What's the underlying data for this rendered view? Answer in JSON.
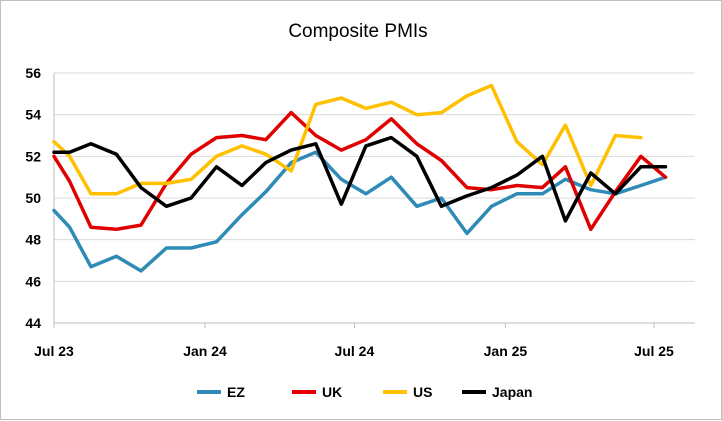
{
  "chart_data": {
    "type": "line",
    "title": "Composite PMIs",
    "xlabel": "",
    "ylabel": "",
    "ylim": [
      44,
      56
    ],
    "yticks": [
      "44",
      "46",
      "48",
      "50",
      "52",
      "54",
      "56"
    ],
    "x_range": [
      "2023-07",
      "2025-07"
    ],
    "xticks": [
      {
        "label": "Jul 23",
        "date": "2023-07"
      },
      {
        "label": "Jan 24",
        "date": "2024-01"
      },
      {
        "label": "Jul 24",
        "date": "2024-07"
      },
      {
        "label": "Jan 25",
        "date": "2025-01"
      },
      {
        "label": "Jul 25",
        "date": "2025-07"
      }
    ],
    "grid": true,
    "legend_position": "bottom",
    "series": [
      {
        "name": "EZ",
        "color": "#2e8bb5",
        "points": [
          [
            "2023-07-01",
            49.4
          ],
          [
            "2023-07-20",
            48.6
          ],
          [
            "2023-08-15",
            46.7
          ],
          [
            "2023-09-15",
            47.2
          ],
          [
            "2023-10-15",
            46.5
          ],
          [
            "2023-11-15",
            47.6
          ],
          [
            "2023-12-15",
            47.6
          ],
          [
            "2024-01-15",
            47.9
          ],
          [
            "2024-02-15",
            49.2
          ],
          [
            "2024-03-15",
            50.3
          ],
          [
            "2024-04-15",
            51.7
          ],
          [
            "2024-05-15",
            52.2
          ],
          [
            "2024-06-15",
            50.9
          ],
          [
            "2024-07-15",
            50.2
          ],
          [
            "2024-08-15",
            51.0
          ],
          [
            "2024-09-15",
            49.6
          ],
          [
            "2024-10-15",
            50.0
          ],
          [
            "2024-11-15",
            48.3
          ],
          [
            "2024-12-15",
            49.6
          ],
          [
            "2025-01-15",
            50.2
          ],
          [
            "2025-02-15",
            50.2
          ],
          [
            "2025-03-15",
            50.9
          ],
          [
            "2025-04-15",
            50.4
          ],
          [
            "2025-05-15",
            50.2
          ],
          [
            "2025-06-15",
            50.6
          ],
          [
            "2025-07-15",
            51.0
          ]
        ]
      },
      {
        "name": "UK",
        "color": "#e00000",
        "points": [
          [
            "2023-07-01",
            52.0
          ],
          [
            "2023-07-20",
            50.8
          ],
          [
            "2023-08-15",
            48.6
          ],
          [
            "2023-09-15",
            48.5
          ],
          [
            "2023-10-15",
            48.7
          ],
          [
            "2023-11-15",
            50.7
          ],
          [
            "2023-12-15",
            52.1
          ],
          [
            "2024-01-15",
            52.9
          ],
          [
            "2024-02-15",
            53.0
          ],
          [
            "2024-03-15",
            52.8
          ],
          [
            "2024-04-15",
            54.1
          ],
          [
            "2024-05-15",
            53.0
          ],
          [
            "2024-06-15",
            52.3
          ],
          [
            "2024-07-15",
            52.8
          ],
          [
            "2024-08-15",
            53.8
          ],
          [
            "2024-09-15",
            52.6
          ],
          [
            "2024-10-15",
            51.8
          ],
          [
            "2024-11-15",
            50.5
          ],
          [
            "2024-12-15",
            50.4
          ],
          [
            "2025-01-15",
            50.6
          ],
          [
            "2025-02-15",
            50.5
          ],
          [
            "2025-03-15",
            51.5
          ],
          [
            "2025-04-15",
            48.5
          ],
          [
            "2025-05-15",
            50.3
          ],
          [
            "2025-06-15",
            52.0
          ],
          [
            "2025-07-15",
            51.0
          ]
        ]
      },
      {
        "name": "US",
        "color": "#ffc000",
        "points": [
          [
            "2023-07-01",
            52.7
          ],
          [
            "2023-07-20",
            52.0
          ],
          [
            "2023-08-15",
            50.2
          ],
          [
            "2023-09-15",
            50.2
          ],
          [
            "2023-10-15",
            50.7
          ],
          [
            "2023-11-15",
            50.7
          ],
          [
            "2023-12-15",
            50.9
          ],
          [
            "2024-01-15",
            52.0
          ],
          [
            "2024-02-15",
            52.5
          ],
          [
            "2024-03-15",
            52.1
          ],
          [
            "2024-04-15",
            51.3
          ],
          [
            "2024-05-15",
            54.5
          ],
          [
            "2024-06-15",
            54.8
          ],
          [
            "2024-07-15",
            54.3
          ],
          [
            "2024-08-15",
            54.6
          ],
          [
            "2024-09-15",
            54.0
          ],
          [
            "2024-10-15",
            54.1
          ],
          [
            "2024-11-15",
            54.9
          ],
          [
            "2024-12-15",
            55.4
          ],
          [
            "2025-01-15",
            52.7
          ],
          [
            "2025-02-15",
            51.6
          ],
          [
            "2025-03-15",
            53.5
          ],
          [
            "2025-04-15",
            50.6
          ],
          [
            "2025-05-15",
            53.0
          ],
          [
            "2025-06-15",
            52.9
          ]
        ]
      },
      {
        "name": "Japan",
        "color": "#000000",
        "points": [
          [
            "2023-07-01",
            52.2
          ],
          [
            "2023-07-20",
            52.2
          ],
          [
            "2023-08-15",
            52.6
          ],
          [
            "2023-09-15",
            52.1
          ],
          [
            "2023-10-15",
            50.5
          ],
          [
            "2023-11-15",
            49.6
          ],
          [
            "2023-12-15",
            50.0
          ],
          [
            "2024-01-15",
            51.5
          ],
          [
            "2024-02-15",
            50.6
          ],
          [
            "2024-03-15",
            51.7
          ],
          [
            "2024-04-15",
            52.3
          ],
          [
            "2024-05-15",
            52.6
          ],
          [
            "2024-06-15",
            49.7
          ],
          [
            "2024-07-15",
            52.5
          ],
          [
            "2024-08-15",
            52.9
          ],
          [
            "2024-09-15",
            52.0
          ],
          [
            "2024-10-15",
            49.6
          ],
          [
            "2024-11-15",
            50.1
          ],
          [
            "2024-12-15",
            50.5
          ],
          [
            "2025-01-15",
            51.1
          ],
          [
            "2025-02-15",
            52.0
          ],
          [
            "2025-03-15",
            48.9
          ],
          [
            "2025-04-15",
            51.2
          ],
          [
            "2025-05-15",
            50.2
          ],
          [
            "2025-06-15",
            51.5
          ],
          [
            "2025-07-15",
            51.5
          ]
        ]
      }
    ]
  }
}
